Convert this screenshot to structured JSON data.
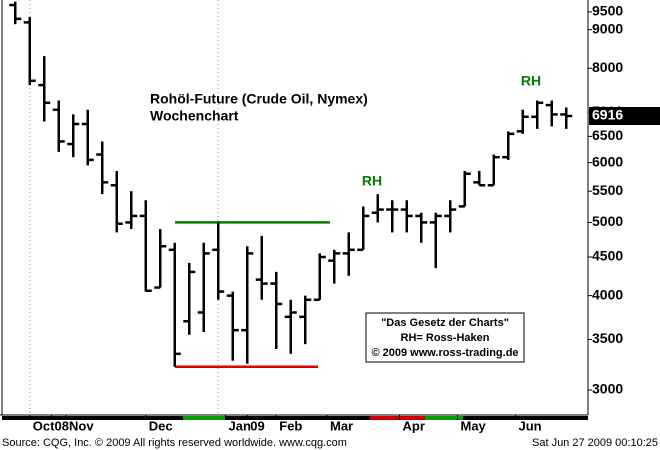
{
  "chart_data": {
    "type": "ohlc",
    "title": "Rohöl-Future (Crude Oil, Nymex)",
    "subtitle": "Wochenchart",
    "categories": [
      null,
      null,
      null,
      null,
      null,
      null,
      null,
      null,
      null,
      null,
      null,
      null,
      null,
      null,
      null,
      null,
      null,
      null,
      null,
      null,
      null,
      null,
      null,
      null,
      null,
      null,
      null,
      null,
      null,
      null,
      null,
      null,
      null,
      null,
      null,
      null,
      null,
      null,
      null
    ],
    "series": [
      {
        "color": "#000000",
        "open": [
          9700,
          9200,
          7600,
          7050,
          6350,
          6750,
          6150,
          5600,
          5000,
          5100,
          4100,
          4600,
          3700,
          3800,
          4600,
          4000,
          3600,
          4200,
          4150,
          3750,
          3750,
          3950,
          4450,
          4550,
          4600,
          5150,
          5200,
          5200,
          5100,
          5000,
          5100,
          5250,
          5650,
          5600,
          6100,
          6600,
          6900,
          7150,
          6950
        ],
        "high": [
          9800,
          9350,
          8300,
          7250,
          6950,
          7050,
          6400,
          5850,
          5500,
          5350,
          4900,
          4700,
          4420,
          4700,
          5000,
          4050,
          4650,
          4800,
          4300,
          3950,
          4000,
          4550,
          4600,
          4850,
          5250,
          5450,
          5350,
          5350,
          5150,
          5150,
          5350,
          5850,
          5850,
          6150,
          6600,
          7050,
          7250,
          7250,
          7100
        ],
        "low": [
          9150,
          7600,
          6800,
          6200,
          6100,
          5950,
          5450,
          4850,
          4900,
          4050,
          4100,
          3220,
          3550,
          3580,
          3950,
          3280,
          3250,
          3950,
          3400,
          3350,
          3450,
          3950,
          4150,
          4250,
          4600,
          5000,
          4850,
          4850,
          4700,
          4350,
          4850,
          5250,
          5600,
          5600,
          6050,
          6550,
          6650,
          6700,
          6650
        ],
        "close": [
          9300,
          7700,
          7200,
          6400,
          6750,
          6050,
          5650,
          4980,
          5100,
          4060,
          4650,
          3350,
          4300,
          4550,
          4050,
          3600,
          4550,
          4150,
          3900,
          3800,
          3950,
          4500,
          4550,
          4600,
          5100,
          5200,
          5200,
          5100,
          5000,
          5100,
          5200,
          5800,
          5600,
          6100,
          6550,
          6900,
          7200,
          6950,
          6916
        ]
      }
    ],
    "ylim": [
      2780,
      9850
    ],
    "log_scale": true,
    "yticks": [
      3000,
      3500,
      4000,
      4500,
      5000,
      5500,
      6000,
      6500,
      7000,
      8000,
      9000,
      9500
    ],
    "xticks": [
      {
        "value": 1,
        "label": "Oct"
      },
      {
        "value": 2.5,
        "label": "08"
      },
      {
        "value": 3.5,
        "label": "Nov"
      },
      {
        "value": 9,
        "label": "Dec"
      },
      {
        "value": 14.5,
        "label": "Jan"
      },
      {
        "value": 16,
        "label": "09"
      },
      {
        "value": 18,
        "label": "Feb"
      },
      {
        "value": 21.5,
        "label": "Mar"
      },
      {
        "value": 26.5,
        "label": "Apr"
      },
      {
        "value": 30.5,
        "label": "May"
      },
      {
        "value": 34.5,
        "label": "Jun"
      }
    ],
    "levels": [
      {
        "value": 5000,
        "color": "#008000"
      },
      {
        "value": 3220,
        "color": "#e00000"
      }
    ],
    "annotations": [
      "RH",
      "RH"
    ],
    "notes": [
      "\"Das Gesetz der Charts\"",
      "RH= Ross-Haken",
      "© 2009 www.ross-trading.de"
    ],
    "source": "Source: CQG, Inc. © 2009 All rights reserved worldwide. www.cqg.com",
    "timestamp": "Sat Jun 27 2009 00:10:25"
  }
}
